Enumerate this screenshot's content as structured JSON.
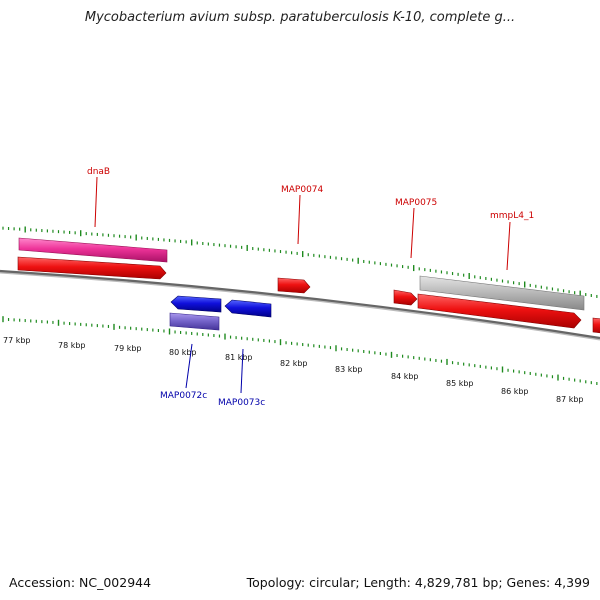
{
  "title": "Mycobacterium avium subsp. paratuberculosis K-10, complete g...",
  "footer": {
    "accession": "Accession: NC_002944",
    "topology": "Topology: circular; Length: 4,829,781 bp; Genes: 4,399"
  },
  "kbp_labels": [
    "77 kbp",
    "78 kbp",
    "79 kbp",
    "80 kbp",
    "81 kbp",
    "82 kbp",
    "83 kbp",
    "84 kbp",
    "85 kbp",
    "86 kbp",
    "87 kbp"
  ],
  "genes": {
    "dnaB": "dnaB",
    "MAP0074": "MAP0074",
    "MAP0075": "MAP0075",
    "mmpL4_1": "mmpL4_1",
    "MAP0072c": "MAP0072c",
    "MAP0073c": "MAP0073c"
  },
  "colors": {
    "tick": "#1e8a1e",
    "forward_gene": "#ee1111",
    "reverse_gene": "#1111dd",
    "dnaB_gene": "#ee3399",
    "mmpL4_gene": "#bbbbbb",
    "MAP0072c_gene": "#7766cc",
    "forward_label": "#cc0000",
    "reverse_label": "#0000aa",
    "backbone": "#777777"
  }
}
